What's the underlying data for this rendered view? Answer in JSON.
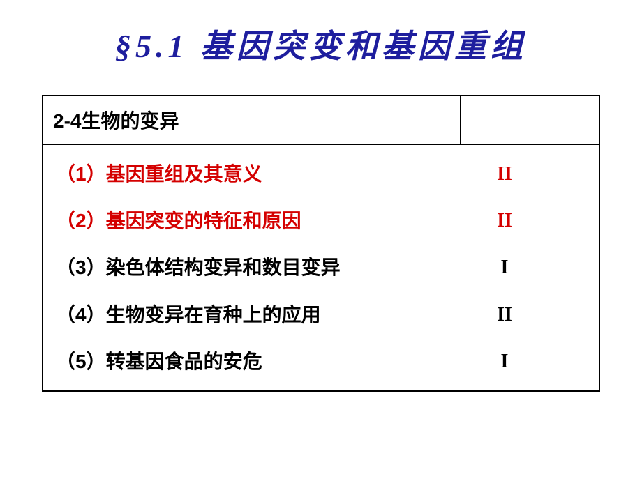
{
  "title": "§5.1 基因突变和基因重组",
  "colors": {
    "title_color": "#1e1e9e",
    "highlight_color": "#d40000",
    "text_color": "#000000",
    "border_color": "#000000",
    "background": "#ffffff"
  },
  "typography": {
    "title_fontsize": 46,
    "body_fontsize": 28,
    "title_font": "华文行楷",
    "body_font": "黑体"
  },
  "table": {
    "header": {
      "left": "2-4生物的变异",
      "right": ""
    },
    "rows": [
      {
        "label": "（1）基因重组及其意义",
        "level": "II",
        "highlighted": true
      },
      {
        "label": "（2）基因突变的特征和原因",
        "level": "II",
        "highlighted": true
      },
      {
        "label": "（3）染色体结构变异和数目变异",
        "level": "I",
        "highlighted": false
      },
      {
        "label": "（4）生物变异在育种上的应用",
        "level": "II",
        "highlighted": false
      },
      {
        "label": "（5）转基因食品的安危",
        "level": "I",
        "highlighted": false
      }
    ]
  }
}
